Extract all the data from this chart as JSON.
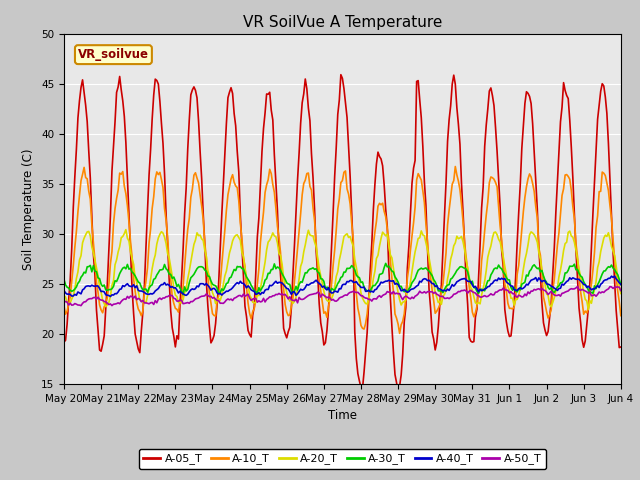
{
  "title": "VR SoilVue A Temperature",
  "ylabel": "Soil Temperature (C)",
  "xlabel": "Time",
  "ylim": [
    15,
    50
  ],
  "yticks": [
    15,
    20,
    25,
    30,
    35,
    40,
    45,
    50
  ],
  "background_color": "#c8c8c8",
  "plot_bg_color": "#e8e8e8",
  "annotation_text": "VR_soilvue",
  "annotation_bg": "#ffffcc",
  "annotation_border": "#cc8800",
  "series_keys": [
    "A-05_T",
    "A-10_T",
    "A-20_T",
    "A-30_T",
    "A-40_T",
    "A-50_T"
  ],
  "series_colors": [
    "#cc0000",
    "#ff8800",
    "#dddd00",
    "#00cc00",
    "#0000cc",
    "#aa00aa"
  ],
  "series_lw": [
    1.2,
    1.2,
    1.2,
    1.2,
    1.2,
    1.2
  ],
  "x_labels": [
    "May 20",
    "May 21",
    "May 22",
    "May 23",
    "May 24",
    "May 25",
    "May 26",
    "May 27",
    "May 28",
    "May 29",
    "May 30",
    "May 31",
    "Jun 1",
    "Jun 2",
    "Jun 3",
    "Jun 4"
  ],
  "legend_labels": [
    "A-05_T",
    "A-10_T",
    "A-20_T",
    "A-30_T",
    "A-40_T",
    "A-50_T"
  ],
  "legend_colors": [
    "#cc0000",
    "#ff8800",
    "#dddd00",
    "#00cc00",
    "#0000cc",
    "#aa00aa"
  ]
}
